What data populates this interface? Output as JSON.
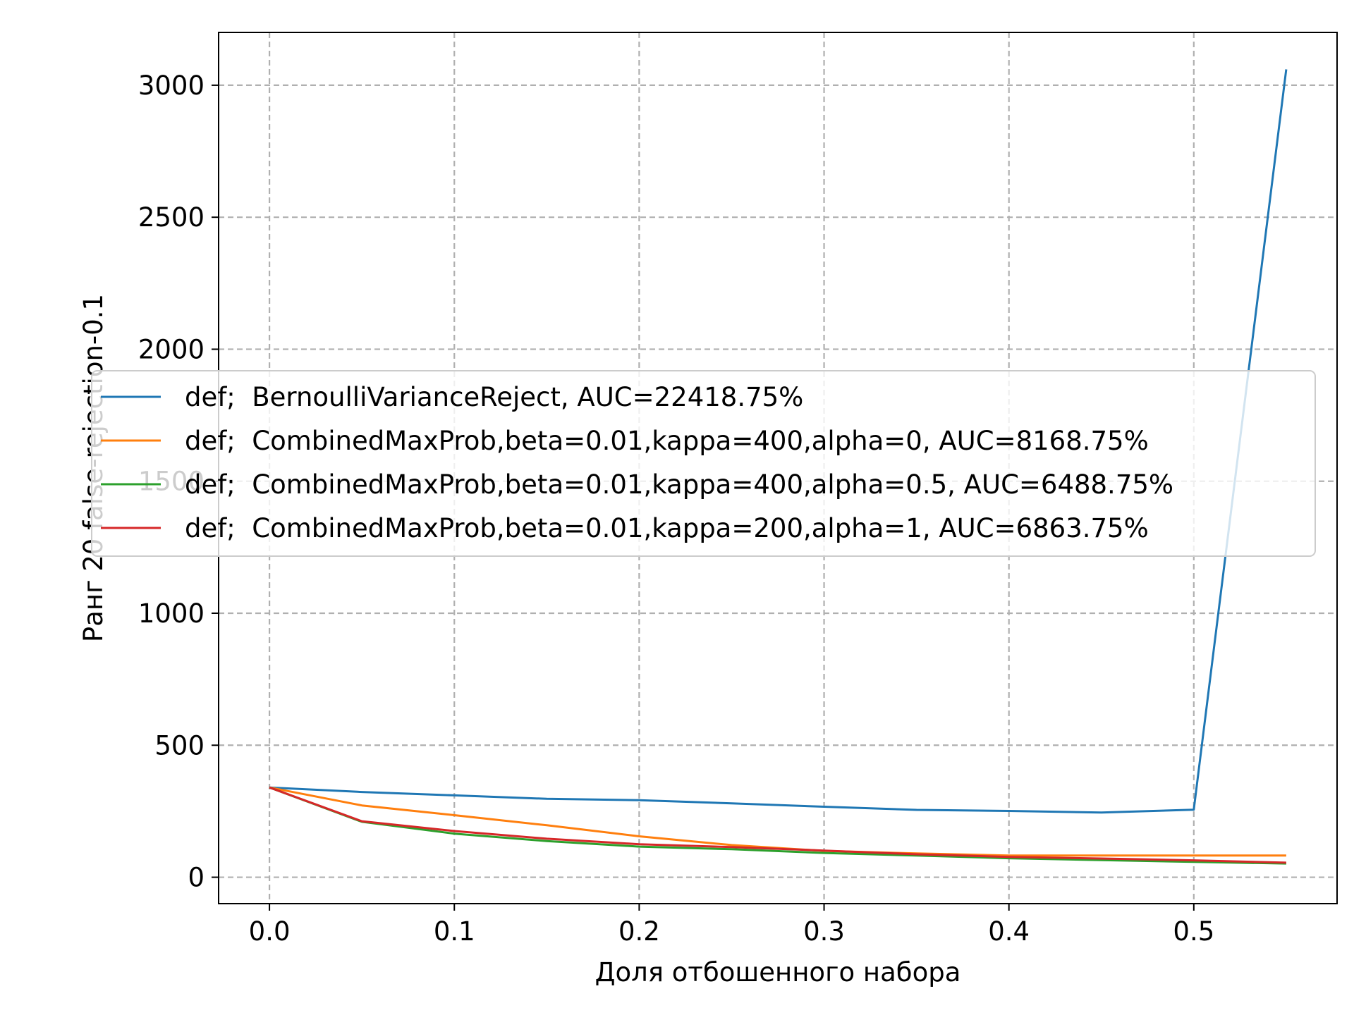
{
  "chart_data": {
    "type": "line",
    "title": "",
    "xlabel": "Доля отбошенного набора",
    "ylabel": "Ранг 20 false-rejection-0.1",
    "xlim": [
      -0.0275,
      0.5775
    ],
    "ylim": [
      -100,
      3200
    ],
    "x_ticks": [
      0.0,
      0.1,
      0.2,
      0.3,
      0.4,
      0.5
    ],
    "x_tick_labels": [
      "0.0",
      "0.1",
      "0.2",
      "0.3",
      "0.4",
      "0.5"
    ],
    "y_ticks": [
      0,
      500,
      1000,
      1500,
      2000,
      2500,
      3000
    ],
    "y_tick_labels": [
      "0",
      "500",
      "1000",
      "1500",
      "2000",
      "2500",
      "3000"
    ],
    "grid": true,
    "legend_position": "center-right",
    "x": [
      0.0,
      0.05,
      0.1,
      0.15,
      0.2,
      0.25,
      0.3,
      0.35,
      0.4,
      0.45,
      0.5,
      0.55
    ],
    "series": [
      {
        "name": "def;  BernoulliVarianceReject, AUC=22418.75%",
        "color": "#1f77b4",
        "values": [
          340,
          323,
          310,
          297,
          292,
          280,
          267,
          255,
          251,
          245,
          256,
          3060
        ]
      },
      {
        "name": "def;  CombinedMaxProb,beta=0.01,kappa=400,alpha=0, AUC=8168.75%",
        "color": "#ff7f0e",
        "values": [
          340,
          272,
          235,
          197,
          155,
          122,
          100,
          90,
          82,
          82,
          82,
          82
        ]
      },
      {
        "name": "def;  CombinedMaxProb,beta=0.01,kappa=400,alpha=0.5, AUC=6488.75%",
        "color": "#2ca02c",
        "values": [
          340,
          210,
          165,
          137,
          116,
          106,
          92,
          82,
          72,
          65,
          58,
          52
        ]
      },
      {
        "name": "def;  CombinedMaxProb,beta=0.01,kappa=200,alpha=1, AUC=6863.75%",
        "color": "#d62728",
        "values": [
          340,
          212,
          175,
          146,
          125,
          114,
          101,
          87,
          77,
          71,
          64,
          55
        ]
      }
    ]
  }
}
